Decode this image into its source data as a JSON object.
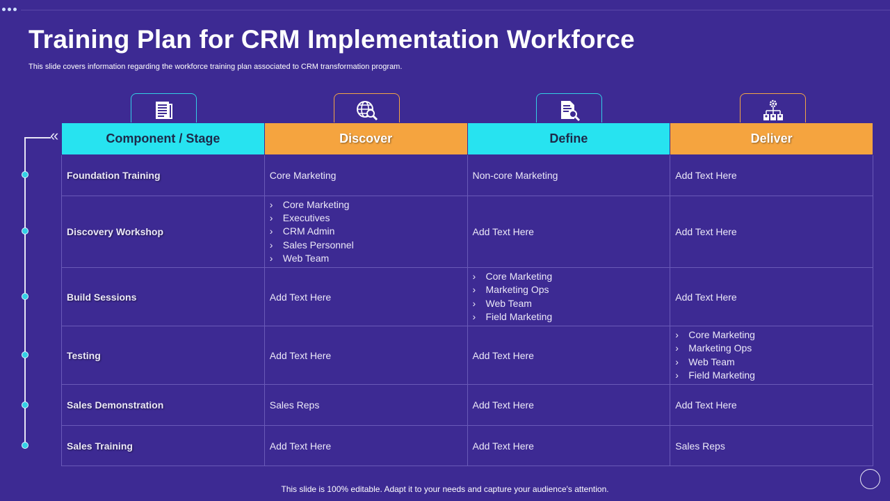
{
  "title": "Training Plan for CRM Implementation Workforce",
  "subtitle": "This slide covers information regarding the workforce training plan associated to CRM transformation program.",
  "footer": "This slide is 100% editable. Adapt it to your needs and capture your audience's attention.",
  "timeline_arrow": "«",
  "colors": {
    "background": "#3d2a93",
    "cyan": "#27e3f0",
    "orange": "#f5a43f"
  },
  "icons": [
    "document-list-icon",
    "globe-search-icon",
    "document-search-icon",
    "org-chart-gear-icon"
  ],
  "table": {
    "headers": [
      "Component  / Stage",
      "Discover",
      "Define",
      "Deliver"
    ],
    "rows": [
      {
        "stage": "Foundation Training",
        "discover": "Core Marketing",
        "define": "Non-core Marketing",
        "deliver": "Add Text Here"
      },
      {
        "stage": "Discovery Workshop",
        "discover": [
          "Core Marketing",
          "Executives",
          "CRM Admin",
          "Sales Personnel",
          "Web Team"
        ],
        "define": "Add Text Here",
        "deliver": "Add Text Here"
      },
      {
        "stage": "Build Sessions",
        "discover": "Add Text Here",
        "define": [
          "Core Marketing",
          "Marketing Ops",
          "Web Team",
          "Field Marketing"
        ],
        "deliver": "Add Text Here"
      },
      {
        "stage": "Testing",
        "discover": "Add Text Here",
        "define": "Add Text Here",
        "deliver": [
          "Core Marketing",
          "Marketing Ops",
          "Web Team",
          "Field Marketing"
        ]
      },
      {
        "stage": "Sales Demonstration",
        "discover": "Sales Reps",
        "define": "Add Text Here",
        "deliver": "Add Text Here"
      },
      {
        "stage": "Sales Training",
        "discover": "Add Text Here",
        "define": "Add Text Here",
        "deliver": "Sales Reps"
      }
    ]
  }
}
